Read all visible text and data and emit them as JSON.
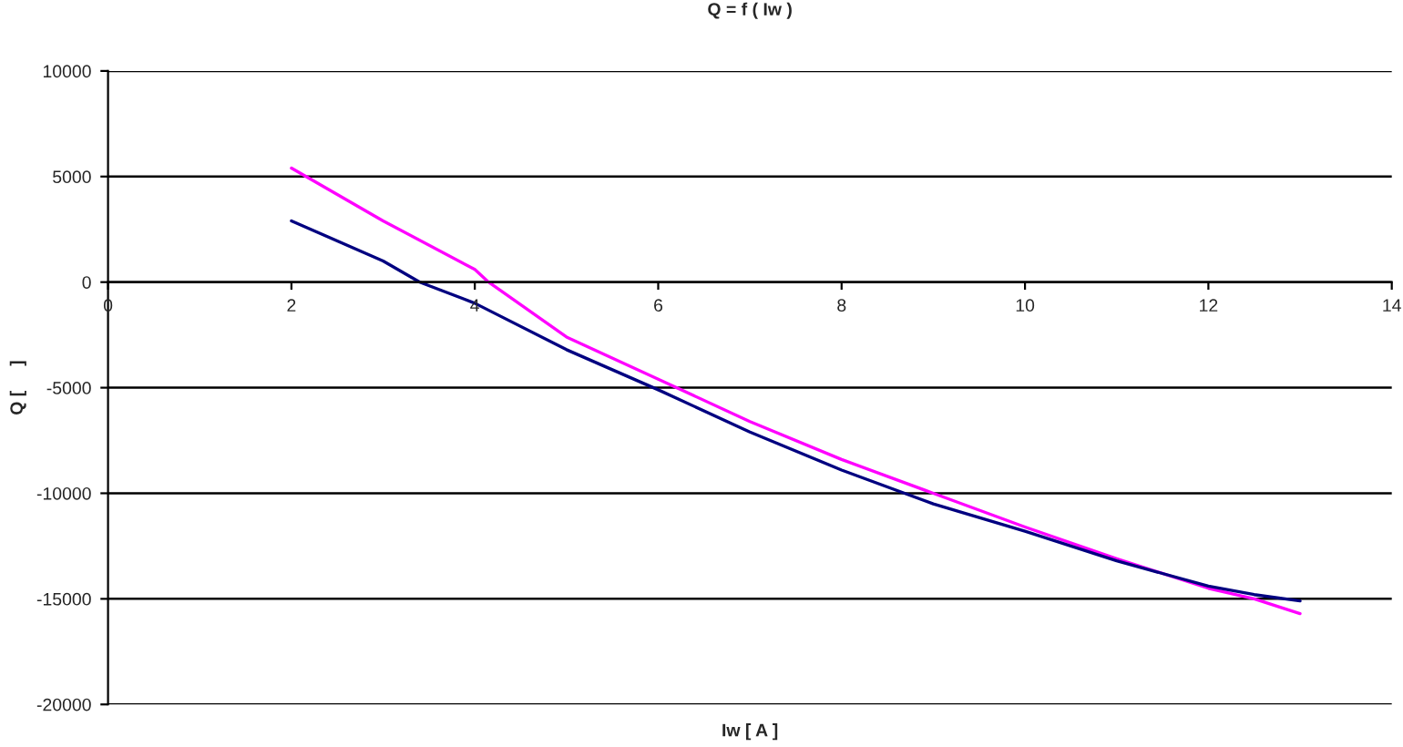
{
  "chart_data": {
    "type": "line",
    "title": "Q = f ( Iw )",
    "xlabel": "Iw [ A ]",
    "ylabel": "Q [     ]",
    "xlim": [
      0,
      14
    ],
    "xticks": [
      0,
      2,
      4,
      6,
      8,
      10,
      12,
      14
    ],
    "ylim": [
      -20000,
      10000
    ],
    "yticks": [
      -20000,
      -15000,
      -10000,
      -5000,
      0,
      5000,
      10000
    ],
    "grid": "y",
    "legend": false,
    "marker": "none",
    "line_style": "solid",
    "series": [
      {
        "color": "#ff00ff",
        "x": [
          2,
          3,
          4,
          4.15,
          5,
          6,
          7,
          8,
          9,
          10,
          11,
          12,
          12.5,
          13
        ],
        "values": [
          5400,
          2900,
          600,
          0,
          -2600,
          -4600,
          -6600,
          -8400,
          -10000,
          -11600,
          -13100,
          -14500,
          -15000,
          -15700
        ]
      },
      {
        "color": "#000080",
        "x": [
          2,
          3,
          3.4,
          4,
          5,
          6,
          7,
          8,
          9,
          10,
          11,
          12,
          12.5,
          13
        ],
        "values": [
          2900,
          1000,
          0,
          -1000,
          -3200,
          -5100,
          -7100,
          -8900,
          -10500,
          -11800,
          -13200,
          -14400,
          -14800,
          -15100
        ]
      }
    ]
  }
}
